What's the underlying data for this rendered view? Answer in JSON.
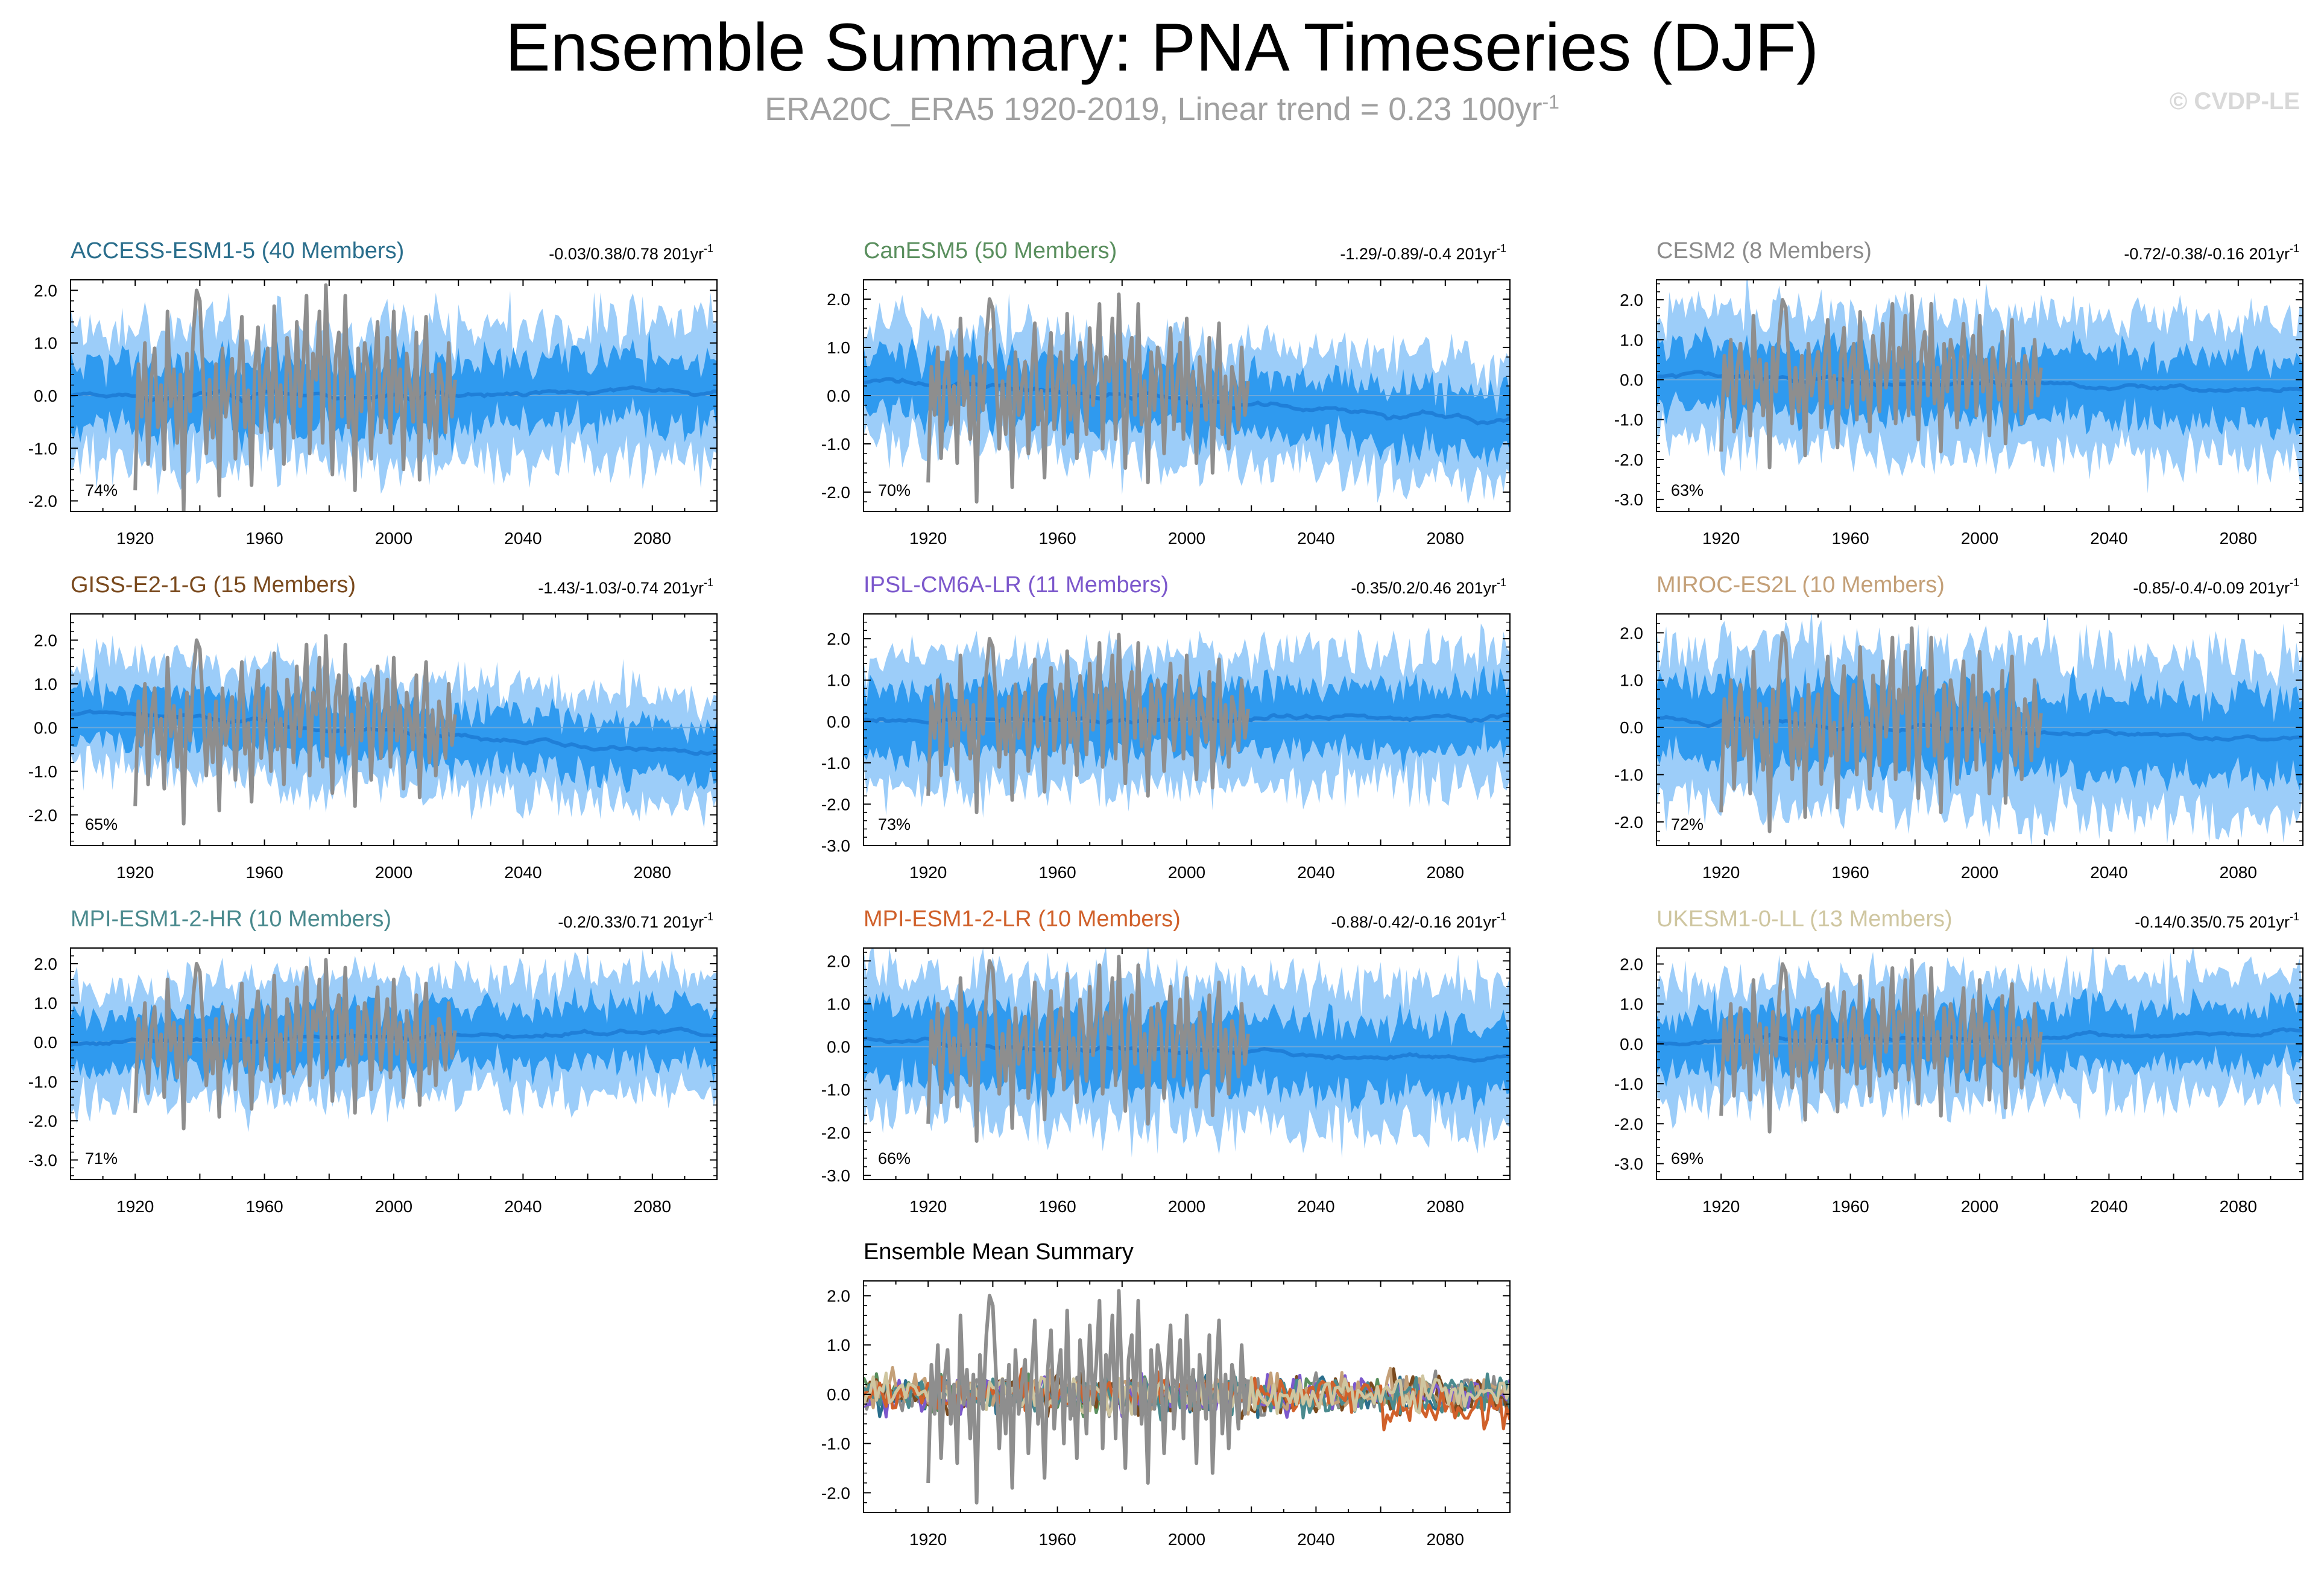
{
  "page": {
    "title": "Ensemble Summary: PNA Timeseries (DJF)",
    "subtitle_prefix": "ERA20C_ERA5 1920-2019, Linear trend = 0.23 100yr",
    "subtitle_sup": "-1",
    "copyright": "© CVDP-LE"
  },
  "chart_data": [
    {
      "type": "area",
      "title": "ACCESS-ESM1-5 (40 Members)",
      "color": "#2a6e8c",
      "trend": "-0.03/0.38/0.78 201yr",
      "trend_sup": "-1",
      "percent": "74%",
      "xlim": [
        1900,
        2100
      ],
      "ylim": [
        -2.2,
        2.2
      ],
      "xticks": [
        1920,
        1960,
        2000,
        2040,
        2080
      ],
      "yticks": [
        "2.0",
        "1.0",
        "0.0",
        "-1.0",
        "-2.0"
      ],
      "ytick_values": [
        2,
        1,
        0,
        -1,
        -2
      ],
      "mean_level": 0.0,
      "mean_trend": 0.05,
      "amp": 0.55
    },
    {
      "type": "area",
      "title": "CanESM5 (50 Members)",
      "color": "#5a8f5e",
      "trend": "-1.29/-0.89/-0.4 201yr",
      "trend_sup": "-1",
      "percent": "70%",
      "xlim": [
        1900,
        2100
      ],
      "ylim": [
        -2.4,
        2.4
      ],
      "xticks": [
        1920,
        1960,
        2000,
        2040,
        2080
      ],
      "yticks": [
        "2.0",
        "1.0",
        "0.0",
        "-1.0",
        "-2.0"
      ],
      "ytick_values": [
        2,
        1,
        0,
        -1,
        -2
      ],
      "mean_level": 0.35,
      "mean_trend": -0.9,
      "amp": 0.55
    },
    {
      "type": "area",
      "title": "CESM2 (8 Members)",
      "color": "#8c8c8c",
      "trend": "-0.72/-0.38/-0.16 201yr",
      "trend_sup": "-1",
      "percent": "63%",
      "xlim": [
        1900,
        2100
      ],
      "ylim": [
        -3.3,
        2.5
      ],
      "xticks": [
        1920,
        1960,
        2000,
        2040,
        2080
      ],
      "yticks": [
        "2.0",
        "1.0",
        "0.0",
        "-1.0",
        "-2.0",
        "-3.0"
      ],
      "ytick_values": [
        2,
        1,
        0,
        -1,
        -2,
        -3
      ],
      "mean_level": 0.1,
      "mean_trend": -0.4,
      "amp": 0.75
    },
    {
      "type": "area",
      "title": "GISS-E2-1-G (15 Members)",
      "color": "#7a4a1e",
      "trend": "-1.43/-1.03/-0.74 201yr",
      "trend_sup": "-1",
      "percent": "65%",
      "xlim": [
        1900,
        2100
      ],
      "ylim": [
        -2.7,
        2.6
      ],
      "xticks": [
        1920,
        1960,
        2000,
        2040,
        2080
      ],
      "yticks": [
        "2.0",
        "1.0",
        "0.0",
        "-1.0",
        "-2.0"
      ],
      "ytick_values": [
        2,
        1,
        0,
        -1,
        -2
      ],
      "mean_level": 0.4,
      "mean_trend": -1.0,
      "amp": 0.55
    },
    {
      "type": "area",
      "title": "IPSL-CM6A-LR (11 Members)",
      "color": "#7c58cc",
      "trend": "-0.35/0.2/0.46 201yr",
      "trend_sup": "-1",
      "percent": "73%",
      "xlim": [
        1900,
        2100
      ],
      "ylim": [
        -3.0,
        2.6
      ],
      "xticks": [
        1920,
        1960,
        2000,
        2040,
        2080
      ],
      "yticks": [
        "2.0",
        "1.0",
        "0.0",
        "-1.0",
        "-2.0",
        "-3.0"
      ],
      "ytick_values": [
        2,
        1,
        0,
        -1,
        -2,
        -3
      ],
      "mean_level": 0.0,
      "mean_trend": 0.1,
      "amp": 0.7
    },
    {
      "type": "area",
      "title": "MIROC-ES2L (10 Members)",
      "color": "#c4a078",
      "trend": "-0.85/-0.4/-0.09 201yr",
      "trend_sup": "-1",
      "percent": "72%",
      "xlim": [
        1900,
        2100
      ],
      "ylim": [
        -2.5,
        2.4
      ],
      "xticks": [
        1920,
        1960,
        2000,
        2040,
        2080
      ],
      "yticks": [
        "2.0",
        "1.0",
        "0.0",
        "-1.0",
        "-2.0"
      ],
      "ytick_values": [
        2,
        1,
        0,
        -1,
        -2
      ],
      "mean_level": 0.15,
      "mean_trend": -0.4,
      "amp": 0.75
    },
    {
      "type": "area",
      "title": "MPI-ESM1-2-HR (10 Members)",
      "color": "#4a8a8e",
      "trend": "-0.2/0.33/0.71 201yr",
      "trend_sup": "-1",
      "percent": "71%",
      "xlim": [
        1900,
        2100
      ],
      "ylim": [
        -3.5,
        2.4
      ],
      "xticks": [
        1920,
        1960,
        2000,
        2040,
        2080
      ],
      "yticks": [
        "2.0",
        "1.0",
        "0.0",
        "-1.0",
        "-2.0",
        "-3.0"
      ],
      "ytick_values": [
        2,
        1,
        0,
        -1,
        -2,
        -3
      ],
      "mean_level": 0.0,
      "mean_trend": 0.3,
      "amp": 0.65
    },
    {
      "type": "area",
      "title": "MPI-ESM1-2-LR (10 Members)",
      "color": "#d0602a",
      "trend": "-0.88/-0.42/-0.16 201yr",
      "trend_sup": "-1",
      "percent": "66%",
      "xlim": [
        1900,
        2100
      ],
      "ylim": [
        -3.1,
        2.3
      ],
      "xticks": [
        1920,
        1960,
        2000,
        2040,
        2080
      ],
      "yticks": [
        "2.0",
        "1.0",
        "0.0",
        "-1.0",
        "-2.0",
        "-3.0"
      ],
      "ytick_values": [
        2,
        1,
        0,
        -1,
        -2,
        -3
      ],
      "mean_level": 0.1,
      "mean_trend": -0.4,
      "amp": 0.75
    },
    {
      "type": "area",
      "title": "UKESM1-0-LL (13 Members)",
      "color": "#cfc6a0",
      "trend": "-0.14/0.35/0.75 201yr",
      "trend_sup": "-1",
      "percent": "69%",
      "xlim": [
        1900,
        2100
      ],
      "ylim": [
        -3.4,
        2.4
      ],
      "xticks": [
        1920,
        1960,
        2000,
        2040,
        2080
      ],
      "yticks": [
        "2.0",
        "1.0",
        "0.0",
        "-1.0",
        "-2.0",
        "-3.0"
      ],
      "ytick_values": [
        2,
        1,
        0,
        -1,
        -2,
        -3
      ],
      "mean_level": 0.0,
      "mean_trend": 0.3,
      "amp": 0.65
    },
    {
      "type": "line",
      "title": "Ensemble Mean Summary",
      "color": "#000000",
      "xlim": [
        1900,
        2100
      ],
      "ylim": [
        -2.4,
        2.3
      ],
      "xticks": [
        1920,
        1960,
        2000,
        2040,
        2080
      ],
      "yticks": [
        "2.0",
        "1.0",
        "0.0",
        "-1.0",
        "-2.0"
      ],
      "ytick_values": [
        2,
        1,
        0,
        -1,
        -2
      ],
      "series_colors": [
        "#2a6e8c",
        "#5a8f5e",
        "#8c8c8c",
        "#7a4a1e",
        "#7c58cc",
        "#c4a078",
        "#4a8a8e",
        "#d0602a",
        "#cfc6a0"
      ]
    }
  ],
  "observations": {
    "name": "ERA20C_ERA5",
    "color": "#8e8e8e",
    "x_start": 1920,
    "values": [
      -1.8,
      0.6,
      -0.4,
      1.0,
      -1.3,
      0.3,
      0.9,
      -0.6,
      0.2,
      -1.4,
      1.6,
      -0.2,
      0.5,
      -0.9,
      0.4,
      -2.2,
      0.8,
      -0.3,
      1.2,
      2.0,
      1.8,
      0.4,
      -1.1,
      0.3,
      -0.8,
      0.6,
      -1.9,
      0.9,
      -0.4,
      0.2,
      0.7,
      -1.2,
      0.4,
      1.5,
      -0.6,
      0.1,
      -1.7,
      0.5,
      1.3,
      -0.7,
      0.3,
      0.9,
      -1.0,
      1.7,
      -0.5,
      0.2,
      -1.3,
      1.1,
      0.4,
      -0.8,
      1.4,
      -0.2,
      0.6,
      1.9,
      -1.1,
      0.8,
      0.3,
      1.6,
      -0.9,
      2.1,
      0.2,
      -1.5,
      0.7,
      1.2,
      -0.4,
      1.9,
      -0.6,
      0.3,
      -1.8,
      0.9,
      -0.3,
      1.0,
      0.5,
      -1.2,
      0.4,
      1.4,
      -0.7,
      0.2,
      1.1,
      -0.9,
      1.6,
      -0.3,
      0.5,
      -1.4,
      0.8,
      0.2,
      -0.5,
      1.2,
      -1.6,
      0.3,
      1.5,
      -0.8,
      0.4,
      -1.1,
      0.6,
      0.2,
      -0.7,
      1.0,
      -0.4,
      0.3
    ]
  }
}
